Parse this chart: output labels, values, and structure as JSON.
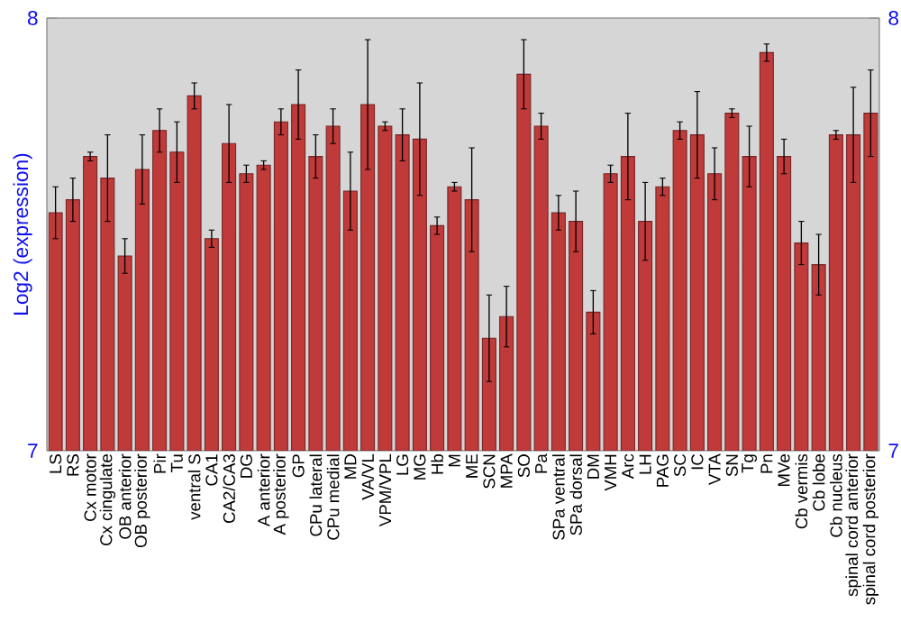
{
  "chart_data": {
    "type": "bar",
    "ylabel": "Log2 (expression)",
    "color": "#c03a3a",
    "categories": [
      "LS",
      "RS",
      "Cx motor",
      "Cx cingulate",
      "OB anterior",
      "OB posterior",
      "Pir",
      "Tu",
      "ventral S",
      "CA1",
      "CA2/CA3",
      "DG",
      "A anterior",
      "A posterior",
      "GP",
      "CPu lateral",
      "CPu medial",
      "MD",
      "VA/VL",
      "VPM/VPL",
      "LG",
      "MG",
      "Hb",
      "M",
      "ME",
      "SCN",
      "MPA",
      "SO",
      "Pa",
      "SPa ventral",
      "SPa dorsal",
      "DM",
      "VMH",
      "Arc",
      "LH",
      "PAG",
      "SC",
      "IC",
      "VTA",
      "SN",
      "Tg",
      "Pn",
      "MVe",
      "Cb vermis",
      "Cb lobe",
      "Cb nucleus",
      "spinal cord anterior",
      "spinal cord posterior"
    ],
    "values": [
      7.55,
      7.58,
      7.68,
      7.63,
      7.45,
      7.65,
      7.74,
      7.69,
      7.82,
      7.49,
      7.71,
      7.64,
      7.66,
      7.76,
      7.8,
      7.68,
      7.75,
      7.6,
      7.8,
      7.75,
      7.73,
      7.72,
      7.52,
      7.61,
      7.58,
      7.26,
      7.31,
      7.87,
      7.75,
      7.55,
      7.53,
      7.32,
      7.64,
      7.68,
      7.53,
      7.61,
      7.74,
      7.73,
      7.64,
      7.78,
      7.68,
      7.92,
      7.68,
      7.48,
      7.43,
      7.73,
      7.73,
      7.78
    ],
    "errors": [
      0.06,
      0.05,
      0.01,
      0.1,
      0.04,
      0.08,
      0.05,
      0.07,
      0.03,
      0.02,
      0.09,
      0.02,
      0.01,
      0.03,
      0.08,
      0.05,
      0.04,
      0.09,
      0.15,
      0.01,
      0.06,
      0.13,
      0.02,
      0.01,
      0.12,
      0.1,
      0.07,
      0.08,
      0.03,
      0.04,
      0.07,
      0.05,
      0.02,
      0.1,
      0.09,
      0.02,
      0.02,
      0.1,
      0.06,
      0.01,
      0.07,
      0.02,
      0.04,
      0.05,
      0.07,
      0.01,
      0.11,
      0.1
    ],
    "ylim": [
      7,
      8
    ],
    "yticks": [
      7,
      8
    ],
    "y2lim": [
      7,
      8
    ],
    "y2ticks": [
      7,
      8
    ]
  }
}
